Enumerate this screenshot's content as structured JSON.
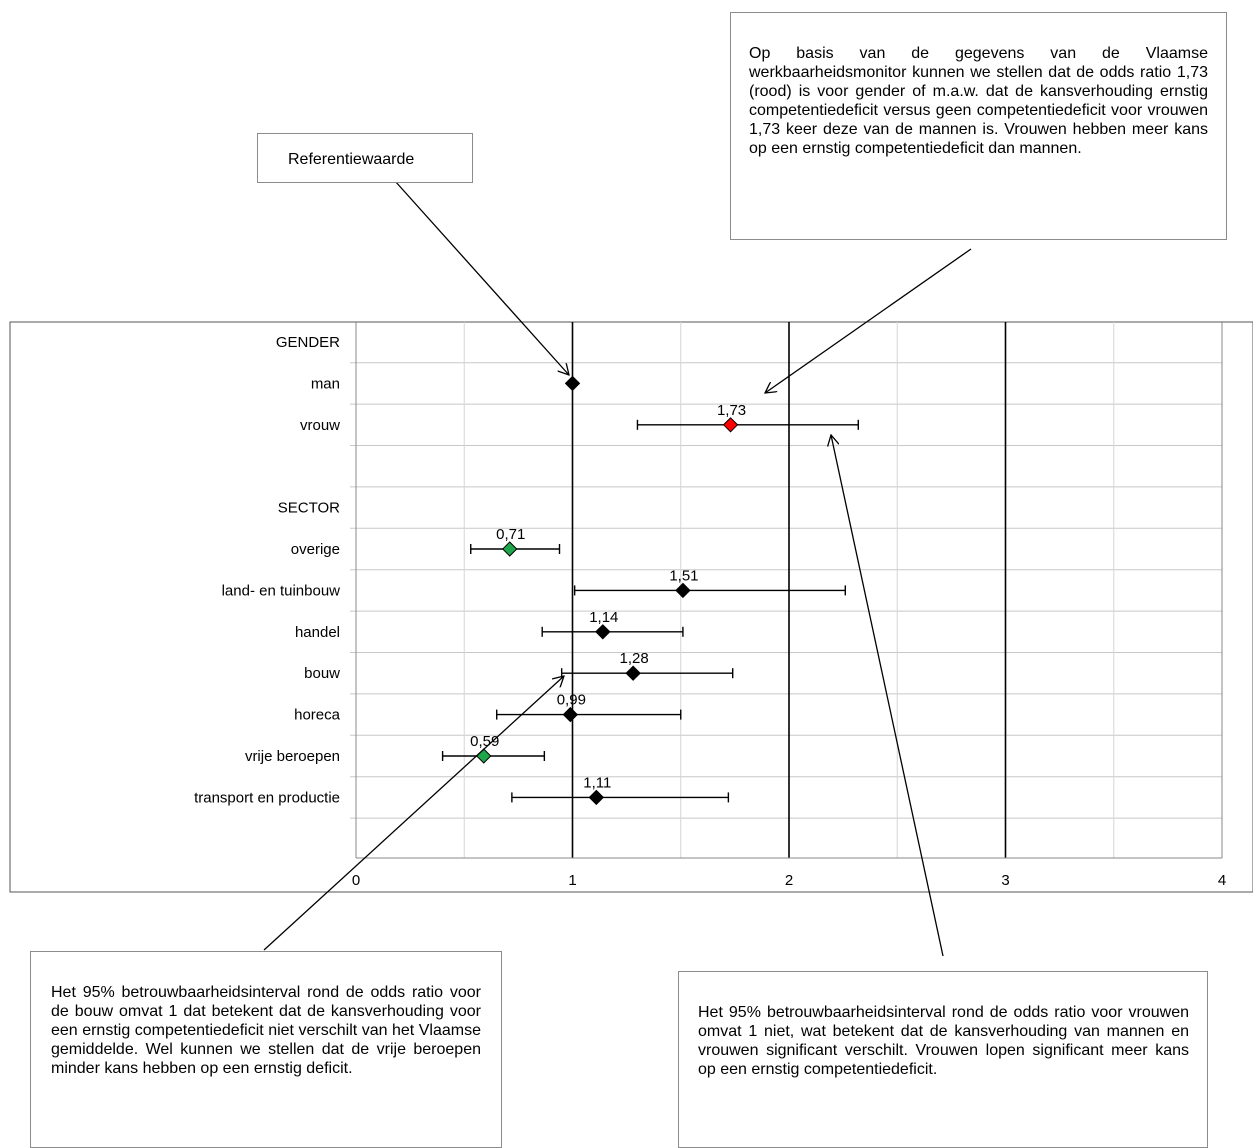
{
  "chart_data": {
    "type": "scatter",
    "title": "",
    "xlabel": "",
    "ylabel": "",
    "xlim": [
      0,
      4
    ],
    "x_ticks": [
      "0",
      "1",
      "2",
      "3",
      "4"
    ],
    "grid": true,
    "reference_value": 1,
    "categories": [
      "GENDER",
      "man",
      "vrouw",
      "",
      "SECTOR",
      "overige",
      "land- en tuinbouw",
      "handel",
      "bouw",
      "horeca",
      "vrije beroepen",
      "transport en productie"
    ],
    "points": [
      {
        "category": "man",
        "value": 1.0,
        "label": "",
        "color": "#000000"
      },
      {
        "category": "vrouw",
        "value": 1.73,
        "label": "1,73",
        "ci": [
          1.3,
          2.32
        ],
        "color": "#ff0000"
      },
      {
        "category": "overige",
        "value": 0.71,
        "label": "0,71",
        "ci": [
          0.53,
          0.94
        ],
        "color": "#1fa64a"
      },
      {
        "category": "land- en tuinbouw",
        "value": 1.51,
        "label": "1,51",
        "ci": [
          1.01,
          2.26
        ],
        "color": "#000000"
      },
      {
        "category": "handel",
        "value": 1.14,
        "label": "1,14",
        "ci": [
          0.86,
          1.51
        ],
        "color": "#000000"
      },
      {
        "category": "bouw",
        "value": 1.28,
        "label": "1,28",
        "ci": [
          0.95,
          1.74
        ],
        "color": "#000000"
      },
      {
        "category": "horeca",
        "value": 0.99,
        "label": "0,99",
        "ci": [
          0.65,
          1.5
        ],
        "color": "#000000"
      },
      {
        "category": "vrije beroepen",
        "value": 0.59,
        "label": "0,59",
        "ci": [
          0.4,
          0.87
        ],
        "color": "#1fa64a"
      },
      {
        "category": "transport en productie",
        "value": 1.11,
        "label": "1,11",
        "ci": [
          0.72,
          1.72
        ],
        "color": "#000000"
      }
    ]
  },
  "annotations": {
    "reference": "Referentiewaarde",
    "gender": "Op basis van de gegevens van de Vlaamse werkbaarheidsmonitor kunnen we stellen dat de odds ratio 1,73 (rood) is voor gender of m.a.w. dat de kansverhouding ernstig competentiedeficit versus geen competentiedeficit voor vrouwen 1,73 keer deze van de mannen is. Vrouwen hebben meer kans op een ernstig competentiedeficit dan mannen.",
    "bouw": "Het 95% betrouwbaarheidsinterval rond de odds ratio voor de bouw omvat 1 dat betekent dat de kansverhouding voor een ernstig competentiedeficit niet verschilt van het Vlaamse gemiddelde. Wel kunnen we stellen dat de vrije beroepen minder kans hebben op een ernstig deficit.",
    "vrouw": "Het 95% betrouwbaarheidsinterval rond de odds ratio voor vrouwen omvat 1 niet, wat betekent dat de kansverhouding van mannen en vrouwen significant verschilt. Vrouwen lopen significant meer kans op een ernstig competentiedeficit."
  }
}
